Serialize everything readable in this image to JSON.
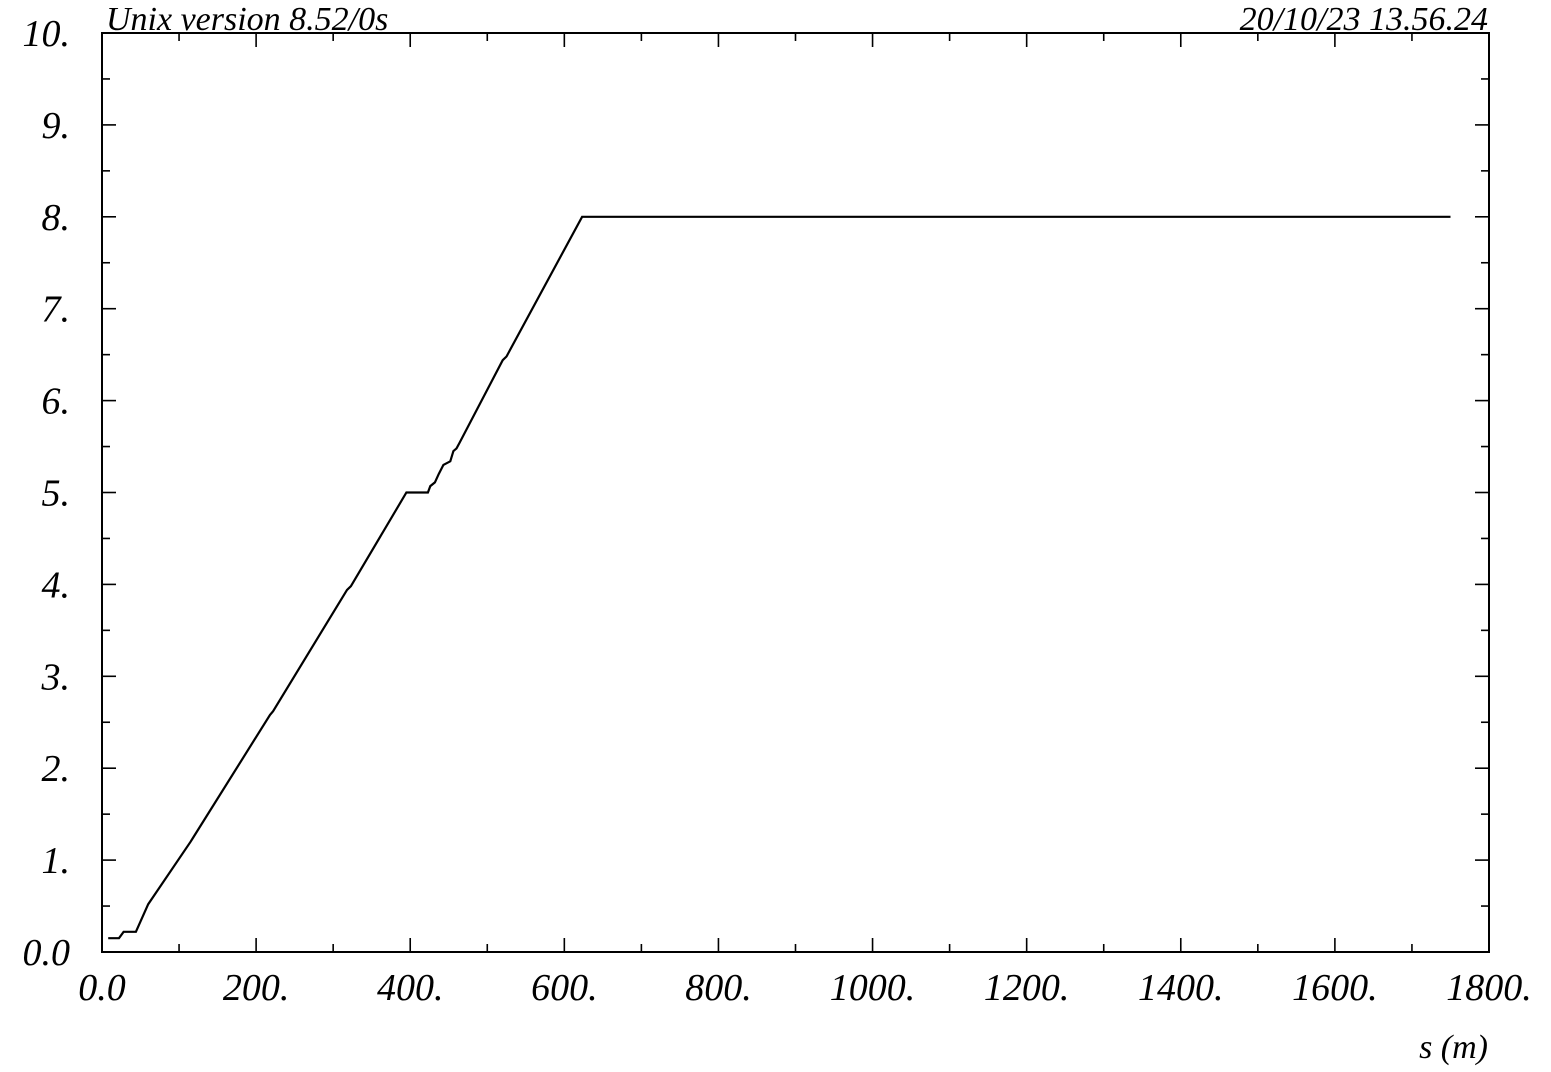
{
  "header": {
    "left_text": "Unix version 8.52/0s",
    "right_text": "20/10/23  13.56.24"
  },
  "chart_data": {
    "type": "line",
    "title": "",
    "xlabel": "s (m)",
    "ylabel": "",
    "xlim": [
      0,
      1800
    ],
    "ylim": [
      0,
      10
    ],
    "x_ticks": [
      0,
      200,
      400,
      600,
      800,
      1000,
      1200,
      1400,
      1600,
      1800
    ],
    "x_tick_labels": [
      "0.0",
      "200.",
      "400.",
      "600.",
      "800.",
      "1000.",
      "1200.",
      "1400.",
      "1600.",
      "1800."
    ],
    "y_ticks": [
      0,
      1,
      2,
      3,
      4,
      5,
      6,
      7,
      8,
      9,
      10
    ],
    "y_tick_labels": [
      "0.0",
      "1.",
      "2.",
      "3.",
      "4.",
      "5.",
      "6.",
      "7.",
      "8.",
      "9.",
      "10."
    ],
    "grid": false,
    "series": [
      {
        "color": "#000000",
        "x": [
          8,
          22,
          28,
          44,
          60,
          115,
          118,
          218,
          222,
          318,
          323,
          395,
          423,
          426,
          432,
          437,
          443,
          452,
          456,
          460,
          464,
          520,
          525,
          623,
          1750
        ],
        "y": [
          0.15,
          0.15,
          0.22,
          0.22,
          0.52,
          1.2,
          1.24,
          2.58,
          2.62,
          3.94,
          3.98,
          5.0,
          5.0,
          5.07,
          5.11,
          5.2,
          5.3,
          5.34,
          5.45,
          5.48,
          5.54,
          6.44,
          6.48,
          8.0,
          8.0
        ]
      }
    ]
  }
}
